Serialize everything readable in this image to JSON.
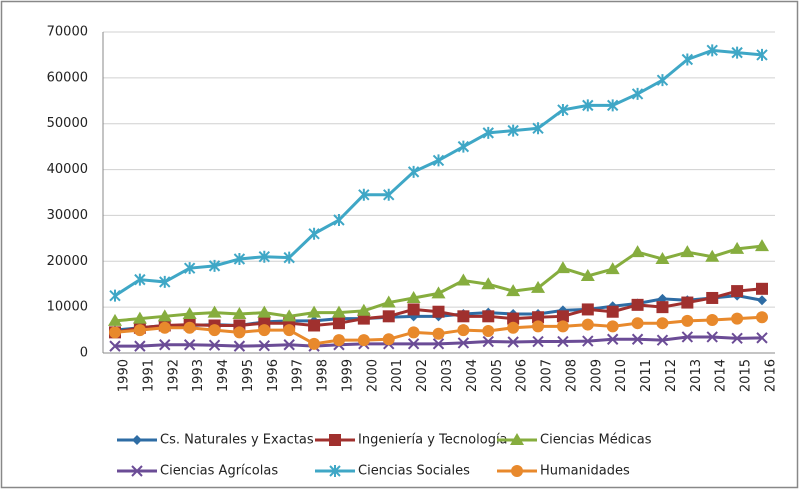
{
  "chart_data": {
    "type": "line",
    "categories": [
      "1990",
      "1991",
      "1992",
      "1993",
      "1994",
      "1995",
      "1996",
      "1997",
      "1998",
      "1999",
      "2000",
      "2001",
      "2002",
      "2003",
      "2004",
      "2005",
      "2006",
      "2007",
      "2008",
      "2009",
      "2010",
      "2011",
      "2012",
      "2013",
      "2014",
      "2015",
      "2016"
    ],
    "series": [
      {
        "name": "Cs. Naturales y Exactas",
        "color": "#2e6ca4",
        "marker": "diamond",
        "values": [
          5000,
          5500,
          6000,
          6000,
          6200,
          6000,
          6800,
          7000,
          7000,
          7500,
          7500,
          7800,
          8000,
          8000,
          8500,
          8800,
          8500,
          8500,
          9300,
          9500,
          10200,
          10800,
          11800,
          11500,
          12000,
          12500,
          11500
        ]
      },
      {
        "name": "Ingeniería y Tecnología",
        "color": "#a0302e",
        "marker": "square",
        "values": [
          4500,
          5500,
          6000,
          6200,
          6000,
          6000,
          6500,
          6500,
          6000,
          6500,
          7500,
          8000,
          9500,
          9000,
          8000,
          8000,
          7500,
          7800,
          8000,
          9500,
          9000,
          10500,
          10000,
          11000,
          12000,
          13500,
          14000
        ]
      },
      {
        "name": "Ciencias Médicas",
        "color": "#86ad3e",
        "marker": "triangle",
        "values": [
          7000,
          7500,
          8000,
          8500,
          8800,
          8500,
          8800,
          8000,
          8800,
          8800,
          9200,
          11000,
          12000,
          13000,
          15800,
          15000,
          13500,
          14200,
          18500,
          16800,
          18300,
          22000,
          20500,
          22000,
          21000,
          22700,
          23300
        ]
      },
      {
        "name": "Ciencias Agrícolas",
        "color": "#6b4c96",
        "marker": "x",
        "values": [
          1500,
          1500,
          1800,
          1800,
          1700,
          1500,
          1600,
          1800,
          1500,
          1800,
          2000,
          2000,
          2000,
          2000,
          2200,
          2500,
          2400,
          2500,
          2500,
          2600,
          3000,
          3000,
          2800,
          3500,
          3500,
          3200,
          3300
        ]
      },
      {
        "name": "Ciencias Sociales",
        "color": "#3fa7c6",
        "marker": "star",
        "values": [
          12500,
          16000,
          15500,
          18500,
          19000,
          20500,
          21000,
          20800,
          26000,
          29000,
          34500,
          34500,
          39500,
          42000,
          45000,
          48000,
          48500,
          49000,
          53000,
          54000,
          54000,
          56500,
          59500,
          64000,
          66000,
          65500,
          65000
        ]
      },
      {
        "name": "Humanidades",
        "color": "#e8892c",
        "marker": "circle",
        "values": [
          4500,
          5000,
          5500,
          5500,
          5000,
          4500,
          5000,
          5000,
          2000,
          2800,
          2800,
          3000,
          4500,
          4200,
          5000,
          4800,
          5500,
          5800,
          5800,
          6200,
          5800,
          6500,
          6500,
          7000,
          7200,
          7500,
          7800
        ]
      }
    ],
    "ylim": [
      0,
      70000
    ],
    "yticks": [
      0,
      10000,
      20000,
      30000,
      40000,
      50000,
      60000,
      70000
    ],
    "grid": true,
    "legend": "bottom"
  }
}
